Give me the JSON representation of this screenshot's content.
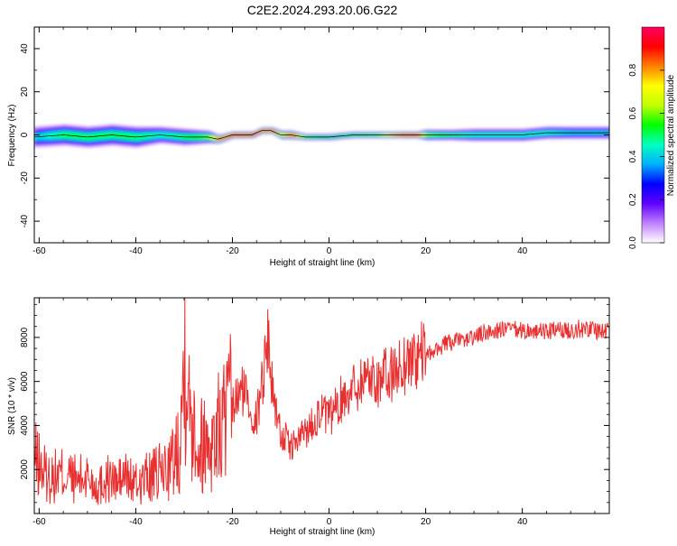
{
  "figure": {
    "title": "C2E2.2024.293.20.06.G22"
  },
  "chart_data": [
    {
      "type": "heatmap",
      "xlabel": "Height of straight line (km)",
      "ylabel": "Frequency (Hz)",
      "xlim": [
        -61,
        58
      ],
      "ylim": [
        -50,
        50
      ],
      "xticks": [
        -60,
        -40,
        -20,
        0,
        20,
        40
      ],
      "yticks": [
        -40,
        -20,
        0,
        20,
        40
      ],
      "grid": false,
      "colorbar": {
        "label": "Normalized spectral amplitude",
        "ticks": [
          0.0,
          0.2,
          0.4,
          0.6,
          0.8
        ],
        "range": [
          0,
          1
        ],
        "colors": [
          "#ffffff",
          "#c080ff",
          "#6000ff",
          "#0000ff",
          "#00b0ff",
          "#00ffc0",
          "#00ff00",
          "#c0ff00",
          "#ffff00",
          "#ff8000",
          "#ff0000",
          "#ff0060"
        ]
      },
      "ridge": {
        "x": [
          -61,
          -55,
          -50,
          -45,
          -40,
          -35,
          -30,
          -25,
          -23,
          -20,
          -16,
          -14,
          -12,
          -10,
          -8,
          -5,
          0,
          5,
          10,
          15,
          18,
          20,
          25,
          30,
          35,
          40,
          45,
          50,
          55,
          58
        ],
        "freq": [
          -1,
          0,
          -1,
          0,
          -1,
          0,
          -1,
          -1,
          -2,
          0,
          0,
          2,
          2,
          0,
          0,
          -1,
          -1,
          0,
          0,
          0,
          0,
          0,
          0,
          0,
          0,
          0,
          1,
          1,
          1,
          1
        ],
        "amplitude": [
          0.4,
          0.5,
          0.5,
          0.5,
          0.5,
          0.45,
          0.5,
          0.6,
          0.85,
          0.95,
          0.95,
          0.9,
          0.9,
          0.7,
          0.9,
          0.6,
          0.5,
          0.55,
          0.6,
          0.95,
          0.95,
          0.6,
          0.5,
          0.45,
          0.45,
          0.45,
          0.45,
          0.4,
          0.4,
          0.4
        ],
        "spread_hz": [
          5,
          5,
          5,
          5,
          5,
          4,
          4,
          3,
          2,
          1.5,
          1.5,
          1.5,
          1.5,
          2,
          2,
          1.5,
          1.5,
          1.5,
          1.5,
          1.5,
          1.5,
          2.5,
          2.5,
          3,
          3,
          3,
          3,
          3,
          3,
          3
        ]
      }
    },
    {
      "type": "line",
      "xlabel": "Height of straight line (km)",
      "ylabel": "SNR (10 * v/v)",
      "xlim": [
        -61,
        58
      ],
      "ylim": [
        0,
        9800
      ],
      "xticks": [
        -60,
        -40,
        -20,
        0,
        20,
        40
      ],
      "yticks": [
        2000,
        4000,
        6000,
        8000
      ],
      "grid": false,
      "series": [
        {
          "color": "#e83030",
          "x": [
            -61,
            -58,
            -55,
            -52,
            -50,
            -48,
            -46,
            -44,
            -42,
            -40,
            -38,
            -36,
            -34,
            -32,
            -31,
            -30,
            -29.5,
            -29,
            -28,
            -27,
            -26,
            -25,
            -24,
            -22,
            -20,
            -18,
            -17,
            -16,
            -15,
            -14,
            -13,
            -12.5,
            -12,
            -11,
            -10,
            -9,
            -8,
            -7,
            -6,
            -5,
            -4,
            -3,
            -2,
            -1,
            0,
            2,
            4,
            6,
            8,
            10,
            12,
            14,
            16,
            18,
            20,
            22,
            24,
            26,
            28,
            30,
            32,
            34,
            36,
            38,
            40,
            42,
            44,
            46,
            48,
            50,
            52,
            54,
            56,
            58
          ],
          "y": [
            2500,
            1600,
            1800,
            1500,
            1700,
            1200,
            1600,
            1400,
            1700,
            1300,
            1600,
            1700,
            2000,
            2400,
            3500,
            6500,
            9700,
            4500,
            4800,
            3000,
            3200,
            3400,
            3200,
            4200,
            4800,
            5600,
            5400,
            4600,
            4200,
            5900,
            7300,
            8400,
            6000,
            4800,
            3600,
            3400,
            3000,
            3200,
            3400,
            3800,
            3900,
            4300,
            4600,
            4500,
            4300,
            5000,
            5600,
            5900,
            6300,
            6100,
            6200,
            6500,
            6900,
            7100,
            7200,
            7400,
            7700,
            7800,
            7900,
            8000,
            8200,
            8300,
            8350,
            8350,
            8300,
            8300,
            8250,
            8300,
            8300,
            8350,
            8400,
            8400,
            8300,
            8350
          ]
        }
      ]
    }
  ]
}
